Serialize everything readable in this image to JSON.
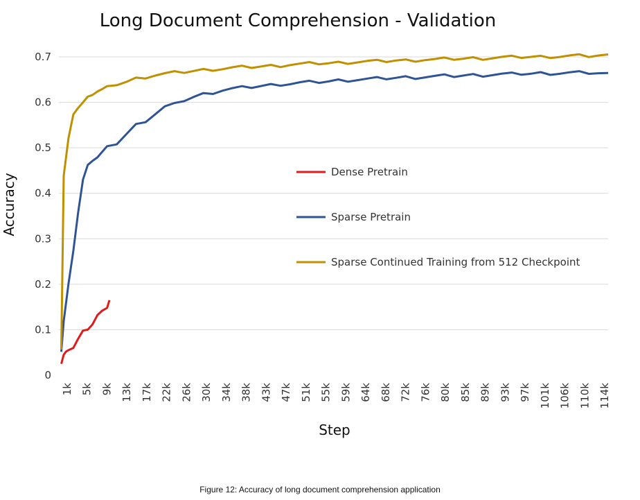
{
  "chart_data": {
    "type": "line",
    "title": "Long Document Comprehension - Validation",
    "xlabel": "Step",
    "ylabel": "Accuracy",
    "ylim": [
      0,
      0.7
    ],
    "y_ticks": [
      "0",
      "0.1",
      "0.2",
      "0.3",
      "0.4",
      "0.5",
      "0.6",
      "0.7"
    ],
    "x_tick_labels": [
      "1k",
      "5k",
      "9k",
      "13k",
      "17k",
      "22k",
      "26k",
      "30k",
      "34k",
      "38k",
      "43k",
      "47k",
      "51k",
      "55k",
      "59k",
      "64k",
      "68k",
      "72k",
      "76k",
      "80k",
      "85k",
      "89k",
      "93k",
      "97k",
      "101k",
      "106k",
      "110k",
      "114k"
    ],
    "grid": "horizontal",
    "legend_placement": "center-right",
    "series": [
      {
        "name": "Dense Pretrain",
        "color": "#e01b1b",
        "x": [
          0.5,
          1,
          1.5,
          2,
          3,
          4,
          5,
          6,
          7,
          8,
          9,
          10,
          10.5
        ],
        "y": [
          0.025,
          0.045,
          0.052,
          0.055,
          0.06,
          0.08,
          0.098,
          0.1,
          0.112,
          0.132,
          0.142,
          0.148,
          0.165
        ]
      },
      {
        "name": "Sparse Pretrain",
        "color": "#2f5496",
        "x": [
          0.5,
          1,
          2,
          3,
          4,
          5,
          6,
          7,
          8,
          9,
          10,
          12,
          14,
          16,
          18,
          20,
          22,
          24,
          26,
          28,
          30,
          32,
          34,
          36,
          38,
          40,
          42,
          44,
          46,
          48,
          50,
          52,
          54,
          56,
          58,
          60,
          62,
          64,
          66,
          68,
          70,
          72,
          74,
          76,
          78,
          80,
          82,
          84,
          86,
          88,
          90,
          92,
          94,
          96,
          98,
          100,
          102,
          104,
          106,
          108,
          110,
          112,
          114
        ],
        "y": [
          0.055,
          0.12,
          0.2,
          0.27,
          0.36,
          0.43,
          0.46,
          0.475,
          0.48,
          0.49,
          0.5,
          0.51,
          0.53,
          0.55,
          0.56,
          0.575,
          0.59,
          0.595,
          0.605,
          0.612,
          0.618,
          0.622,
          0.627,
          0.63,
          0.632,
          0.634,
          0.636,
          0.638,
          0.64,
          0.641,
          0.643,
          0.644,
          0.645,
          0.646,
          0.648,
          0.649,
          0.65,
          0.651,
          0.652,
          0.653,
          0.654,
          0.655,
          0.655,
          0.656,
          0.657,
          0.658,
          0.658,
          0.659,
          0.66,
          0.66,
          0.661,
          0.662,
          0.662,
          0.663,
          0.663,
          0.664,
          0.664,
          0.664,
          0.665,
          0.665,
          0.665,
          0.664,
          0.662
        ]
      },
      {
        "name": "Sparse Continued Training from 512 Checkpoint",
        "color": "#c09000",
        "x": [
          0.5,
          1,
          2,
          3,
          4,
          5,
          6,
          7,
          8,
          9,
          10,
          12,
          14,
          16,
          18,
          20,
          22,
          24,
          26,
          28,
          30,
          32,
          34,
          36,
          38,
          40,
          42,
          44,
          46,
          48,
          50,
          52,
          54,
          56,
          58,
          60,
          62,
          64,
          66,
          68,
          70,
          72,
          74,
          76,
          78,
          80,
          82,
          84,
          86,
          88,
          90,
          92,
          94,
          96,
          98,
          100,
          102,
          104,
          106,
          108,
          110,
          112,
          114
        ],
        "y": [
          0.06,
          0.44,
          0.52,
          0.57,
          0.59,
          0.6,
          0.61,
          0.62,
          0.625,
          0.628,
          0.632,
          0.64,
          0.645,
          0.652,
          0.656,
          0.66,
          0.663,
          0.665,
          0.667,
          0.669,
          0.671,
          0.673,
          0.674,
          0.676,
          0.677,
          0.678,
          0.679,
          0.68,
          0.681,
          0.683,
          0.684,
          0.685,
          0.686,
          0.686,
          0.687,
          0.688,
          0.689,
          0.69,
          0.69,
          0.691,
          0.692,
          0.692,
          0.693,
          0.694,
          0.694,
          0.695,
          0.696,
          0.696,
          0.697,
          0.697,
          0.698,
          0.699,
          0.699,
          0.7,
          0.7,
          0.7,
          0.701,
          0.701,
          0.702,
          0.702,
          0.702,
          0.703,
          0.703
        ]
      }
    ]
  },
  "caption": "Figure 12: Accuracy of long document comprehension application"
}
